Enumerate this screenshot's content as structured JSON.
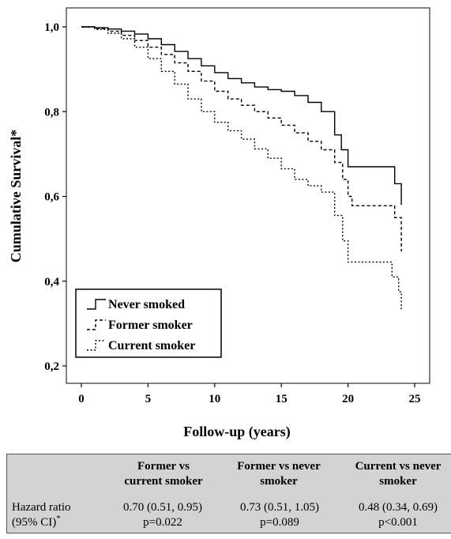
{
  "chart_data": {
    "type": "line",
    "ylabel": "Cumulative Survival*",
    "xlabel": "Follow-up (years)",
    "xlim": [
      0,
      25
    ],
    "ylim": [
      0.2,
      1.0
    ],
    "xticks": [
      0,
      5,
      10,
      15,
      20,
      25
    ],
    "yticks": [
      1.0,
      0.8,
      0.6,
      0.4,
      0.2
    ],
    "ytick_labels": [
      "1,0",
      "0,8",
      "0,6",
      "0,4",
      "0,2"
    ],
    "legend": {
      "placement": "bottom-left",
      "style": "boxed"
    },
    "grid": false,
    "series": [
      {
        "name": "Never smoked",
        "line_style": "solid",
        "points": [
          [
            0,
            1.0
          ],
          [
            1,
            0.998
          ],
          [
            2,
            0.995
          ],
          [
            3,
            0.99
          ],
          [
            4,
            0.983
          ],
          [
            5,
            0.972
          ],
          [
            6,
            0.958
          ],
          [
            7,
            0.942
          ],
          [
            8,
            0.925
          ],
          [
            9,
            0.908
          ],
          [
            10,
            0.892
          ],
          [
            11,
            0.878
          ],
          [
            12,
            0.868
          ],
          [
            13,
            0.858
          ],
          [
            14,
            0.852
          ],
          [
            15,
            0.848
          ],
          [
            16,
            0.838
          ],
          [
            17,
            0.822
          ],
          [
            18,
            0.8
          ],
          [
            19,
            0.745
          ],
          [
            19.5,
            0.71
          ],
          [
            20,
            0.67
          ],
          [
            21,
            0.67
          ],
          [
            22,
            0.67
          ],
          [
            23.5,
            0.67
          ],
          [
            23.5,
            0.63
          ],
          [
            24,
            0.615
          ],
          [
            24,
            0.58
          ]
        ]
      },
      {
        "name": "Former smoker",
        "line_style": "dashed",
        "points": [
          [
            0,
            1.0
          ],
          [
            1,
            0.996
          ],
          [
            2,
            0.99
          ],
          [
            3,
            0.98
          ],
          [
            4,
            0.968
          ],
          [
            5,
            0.952
          ],
          [
            6,
            0.935
          ],
          [
            7,
            0.915
          ],
          [
            8,
            0.895
          ],
          [
            9,
            0.872
          ],
          [
            10,
            0.848
          ],
          [
            11,
            0.83
          ],
          [
            12,
            0.815
          ],
          [
            13,
            0.8
          ],
          [
            14,
            0.785
          ],
          [
            15,
            0.768
          ],
          [
            16,
            0.75
          ],
          [
            17,
            0.73
          ],
          [
            18,
            0.71
          ],
          [
            19,
            0.68
          ],
          [
            19.6,
            0.64
          ],
          [
            20,
            0.6
          ],
          [
            20.3,
            0.578
          ],
          [
            22,
            0.578
          ],
          [
            23.5,
            0.578
          ],
          [
            23.5,
            0.55
          ],
          [
            24,
            0.52
          ],
          [
            24,
            0.47
          ]
        ]
      },
      {
        "name": "Current smoker",
        "line_style": "dotted",
        "points": [
          [
            0,
            1.0
          ],
          [
            1,
            0.994
          ],
          [
            2,
            0.985
          ],
          [
            3,
            0.972
          ],
          [
            4,
            0.952
          ],
          [
            5,
            0.925
          ],
          [
            6,
            0.895
          ],
          [
            7,
            0.865
          ],
          [
            8,
            0.83
          ],
          [
            9,
            0.8
          ],
          [
            10,
            0.775
          ],
          [
            11,
            0.755
          ],
          [
            12,
            0.735
          ],
          [
            13,
            0.712
          ],
          [
            14,
            0.69
          ],
          [
            15,
            0.665
          ],
          [
            16,
            0.64
          ],
          [
            17,
            0.625
          ],
          [
            18,
            0.61
          ],
          [
            19,
            0.555
          ],
          [
            19.6,
            0.495
          ],
          [
            20,
            0.445
          ],
          [
            21,
            0.445
          ],
          [
            23.3,
            0.445
          ],
          [
            23.3,
            0.41
          ],
          [
            23.8,
            0.375
          ],
          [
            24,
            0.33
          ]
        ]
      }
    ]
  },
  "table": {
    "row_label_line1": "Hazard ratio",
    "row_label_line2": "(95% CI)",
    "row_label_mark": "*",
    "columns": [
      {
        "header_line1": "Former vs",
        "header_line2": "current smoker",
        "value": "0.70 (0.51, 0.95)",
        "p": "p=0.022"
      },
      {
        "header_line1": "Former vs never",
        "header_line2": "smoker",
        "value": "0.73 (0.51, 1.05)",
        "p": "p=0.089"
      },
      {
        "header_line1": "Current vs never",
        "header_line2": "smoker",
        "value": "0.48 (0.34, 0.69)",
        "p": "p<0.001"
      }
    ]
  }
}
